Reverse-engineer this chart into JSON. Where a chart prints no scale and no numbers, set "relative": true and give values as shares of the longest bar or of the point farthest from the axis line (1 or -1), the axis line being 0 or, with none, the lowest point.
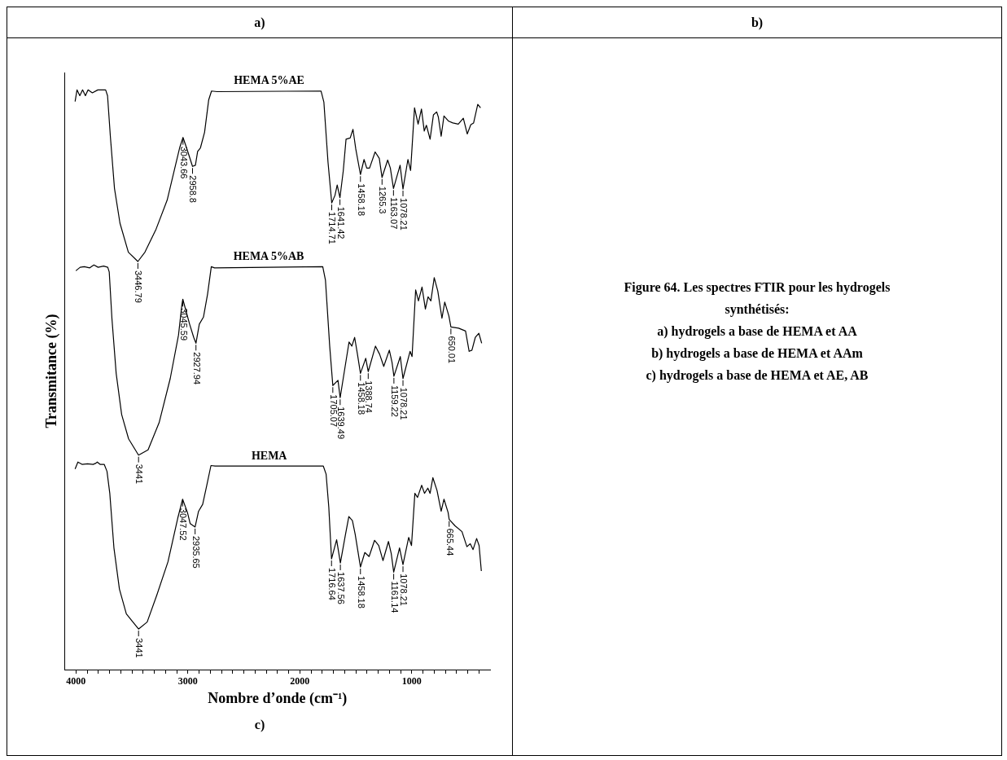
{
  "chart_data": {
    "type": "line",
    "title": "Figure 64. Les spectres FTIR pour les hydrogels synthétisés:",
    "xlabel": "Nombre d’onde (cm⁻¹)",
    "ylabel": "Transmitance (%)",
    "relative": true,
    "legend": false,
    "grid": false,
    "marker": "none",
    "line_style": "solid",
    "xlim": [
      4100,
      300
    ],
    "xticks": [
      4000,
      {
        "value": 3900,
        "label": null
      },
      {
        "value": 3800,
        "label": null
      },
      {
        "value": 3700,
        "label": null
      },
      {
        "value": 3600,
        "label": null
      },
      {
        "value": 3500,
        "label": null
      },
      {
        "value": 3400,
        "label": null
      },
      {
        "value": 3300,
        "label": null
      },
      {
        "value": 3200,
        "label": null
      },
      {
        "value": 3100,
        "label": null
      },
      3000,
      {
        "value": 2900,
        "label": null
      },
      {
        "value": 2800,
        "label": null
      },
      {
        "value": 2700,
        "label": null
      },
      {
        "value": 2600,
        "label": null
      },
      {
        "value": 2500,
        "label": null
      },
      {
        "value": 2400,
        "label": null
      },
      {
        "value": 2300,
        "label": null
      },
      {
        "value": 2200,
        "label": null
      },
      {
        "value": 2100,
        "label": null
      },
      2000,
      {
        "value": 1900,
        "label": null
      },
      {
        "value": 1800,
        "label": null
      },
      {
        "value": 1700,
        "label": null
      },
      {
        "value": 1600,
        "label": null
      },
      {
        "value": 1500,
        "label": null
      },
      {
        "value": 1400,
        "label": null
      },
      {
        "value": 1300,
        "label": null
      },
      {
        "value": 1200,
        "label": null
      },
      {
        "value": 1100,
        "label": null
      },
      1000,
      {
        "value": 900,
        "label": null
      },
      {
        "value": 800,
        "label": null
      },
      {
        "value": 700,
        "label": null
      },
      {
        "value": 600,
        "label": null
      },
      {
        "value": 500,
        "label": null
      },
      {
        "value": 400,
        "label": null
      }
    ],
    "series": [
      {
        "name": "HEMA 5%AE",
        "color": "#000000",
        "x": [
          4008,
          3991,
          3966,
          3941,
          3916,
          3892,
          3854,
          3805,
          3735,
          3718,
          3693,
          3656,
          3607,
          3532,
          3446.79,
          3384,
          3284,
          3185,
          3111,
          3074,
          3043.66,
          3012,
          2958.8,
          2933,
          2913,
          2888,
          2851,
          2814,
          2789,
          2739,
          1810,
          1785,
          1748,
          1714.71,
          1686,
          1666,
          1641.42,
          1612,
          1587,
          1550,
          1525,
          1500,
          1458.18,
          1426,
          1402,
          1377,
          1327,
          1290,
          1265.3,
          1215,
          1191,
          1163.07,
          1104,
          1078.21,
          1034,
          1010,
          975,
          943,
          913,
          888,
          869,
          836,
          806,
          777,
          762,
          737,
          712,
          670,
          633,
          584,
          539,
          504,
          472,
          447,
          410,
          385
        ],
        "values": [
          0.98,
          1.0,
          0.99,
          1.0,
          0.99,
          1.0,
          0.995,
          1.0,
          1.0,
          0.99,
          0.92,
          0.83,
          0.77,
          0.72,
          0.704,
          0.72,
          0.76,
          0.81,
          0.87,
          0.9,
          0.918,
          0.9,
          0.868,
          0.87,
          0.894,
          0.9,
          0.927,
          0.983,
          0.998,
          0.997,
          0.998,
          0.979,
          0.875,
          0.805,
          0.818,
          0.836,
          0.814,
          0.86,
          0.915,
          0.917,
          0.932,
          0.898,
          0.854,
          0.88,
          0.865,
          0.865,
          0.893,
          0.882,
          0.849,
          0.879,
          0.865,
          0.83,
          0.87,
          0.829,
          0.88,
          0.861,
          0.969,
          0.941,
          0.967,
          0.929,
          0.939,
          0.915,
          0.957,
          0.962,
          0.953,
          0.92,
          0.955,
          0.946,
          0.943,
          0.941,
          0.951,
          0.924,
          0.94,
          0.943,
          0.975,
          0.969
        ]
      },
      {
        "name": "HEMA 5%AB",
        "color": "#000000",
        "x": [
          4001,
          3963,
          3926,
          3877,
          3840,
          3802,
          3753,
          3716,
          3703,
          3679,
          3641,
          3592,
          3530,
          3441,
          3356,
          3257,
          3158,
          3084,
          3054,
          3045.59,
          2985,
          2948,
          2927.94,
          2898,
          2861,
          2824,
          2791,
          2762,
          1795,
          1771,
          1733,
          1705.07,
          1659,
          1639.49,
          1585,
          1560,
          1535,
          1510,
          1485,
          1458.18,
          1411,
          1388.74,
          1324,
          1287,
          1250,
          1200,
          1176,
          1159.22,
          1102,
          1078.21,
          1015,
          997,
          965,
          940,
          908,
          878,
          854,
          829,
          799,
          767,
          730,
          705,
          668,
          650.01,
          581,
          519,
          487,
          462,
          432,
          400,
          375
        ],
        "values": [
          0.688,
          0.694,
          0.695,
          0.693,
          0.698,
          0.694,
          0.696,
          0.694,
          0.686,
          0.606,
          0.511,
          0.44,
          0.398,
          0.37,
          0.379,
          0.426,
          0.502,
          0.577,
          0.629,
          0.639,
          0.596,
          0.573,
          0.563,
          0.596,
          0.608,
          0.648,
          0.695,
          0.693,
          0.695,
          0.672,
          0.558,
          0.49,
          0.499,
          0.469,
          0.535,
          0.565,
          0.558,
          0.573,
          0.544,
          0.511,
          0.537,
          0.514,
          0.558,
          0.544,
          0.523,
          0.551,
          0.53,
          0.506,
          0.54,
          0.502,
          0.549,
          0.54,
          0.655,
          0.636,
          0.66,
          0.622,
          0.643,
          0.636,
          0.676,
          0.653,
          0.606,
          0.634,
          0.61,
          0.591,
          0.589,
          0.584,
          0.549,
          0.551,
          0.573,
          0.58,
          0.563
        ]
      },
      {
        "name": "HEMA",
        "color": "#000000",
        "x": [
          4008,
          3983,
          3946,
          3897,
          3847,
          3822,
          3810,
          3785,
          3748,
          3723,
          3698,
          3661,
          3612,
          3550,
          3441,
          3364,
          3277,
          3178,
          3091,
          3047.52,
          3004,
          2980,
          2935.65,
          2905,
          2868,
          2831,
          2794,
          2757,
          1790,
          1765,
          1741,
          1716.64,
          1671,
          1637.56,
          1592,
          1562,
          1530,
          1505,
          1458.18,
          1419,
          1381,
          1332,
          1295,
          1257,
          1208,
          1183,
          1161.14,
          1109,
          1078.21,
          1027,
          1002,
          972,
          948,
          911,
          886,
          856,
          836,
          811,
          774,
          737,
          712,
          675,
          665.44,
          613,
          551,
          507,
          477,
          452,
          420,
          398,
          378
        ],
        "values": [
          0.346,
          0.358,
          0.354,
          0.355,
          0.354,
          0.356,
          0.358,
          0.354,
          0.354,
          0.342,
          0.304,
          0.21,
          0.139,
          0.096,
          0.07,
          0.082,
          0.129,
          0.186,
          0.261,
          0.294,
          0.271,
          0.252,
          0.246,
          0.273,
          0.285,
          0.318,
          0.352,
          0.351,
          0.351,
          0.337,
          0.28,
          0.191,
          0.224,
          0.184,
          0.233,
          0.264,
          0.257,
          0.233,
          0.177,
          0.202,
          0.195,
          0.223,
          0.214,
          0.188,
          0.221,
          0.2,
          0.168,
          0.21,
          0.181,
          0.228,
          0.214,
          0.304,
          0.297,
          0.318,
          0.304,
          0.313,
          0.304,
          0.331,
          0.309,
          0.273,
          0.294,
          0.271,
          0.259,
          0.248,
          0.238,
          0.212,
          0.217,
          0.207,
          0.226,
          0.214,
          0.17
        ]
      }
    ],
    "annotations": [
      "a)",
      "b)",
      {
        "text": "3446.79",
        "x": 3446.79,
        "y": 0.704
      },
      {
        "text": "3043.66",
        "x": 3043.66,
        "y": 0.918
      },
      {
        "text": "2958.8",
        "x": 2958.8,
        "y": 0.868
      },
      {
        "text": "1714.71",
        "x": 1714.71,
        "y": 0.805
      },
      {
        "text": "1641.42",
        "x": 1641.42,
        "y": 0.814
      },
      {
        "text": "1458.18",
        "x": 1458.18,
        "y": 0.854
      },
      {
        "text": "1265.3",
        "x": 1265.3,
        "y": 0.849
      },
      {
        "text": "1163.07",
        "x": 1163.07,
        "y": 0.83
      },
      {
        "text": "1078.21",
        "x": 1078.21,
        "y": 0.829
      },
      {
        "text": "3441",
        "x": 3441,
        "y": 0.37
      },
      {
        "text": "3045.59",
        "x": 3045.59,
        "y": 0.639
      },
      {
        "text": "2927.94",
        "x": 2927.94,
        "y": 0.563
      },
      {
        "text": "1705.07",
        "x": 1705.07,
        "y": 0.49
      },
      {
        "text": "1639.49",
        "x": 1639.49,
        "y": 0.469
      },
      {
        "text": "1458.18",
        "x": 1458.18,
        "y": 0.511
      },
      {
        "text": "1388.74",
        "x": 1388.74,
        "y": 0.514
      },
      {
        "text": "1159.22",
        "x": 1159.22,
        "y": 0.506
      },
      {
        "text": "1078.21",
        "x": 1078.21,
        "y": 0.502
      },
      {
        "text": "650.01",
        "x": 650.01,
        "y": 0.591
      },
      {
        "text": "3441",
        "x": 3441,
        "y": 0.07
      },
      {
        "text": "3047.52",
        "x": 3047.52,
        "y": 0.294
      },
      {
        "text": "2935.65",
        "x": 2935.65,
        "y": 0.246
      },
      {
        "text": "1716.64",
        "x": 1716.64,
        "y": 0.191
      },
      {
        "text": "1637.56",
        "x": 1637.56,
        "y": 0.184
      },
      {
        "text": "1458.18",
        "x": 1458.18,
        "y": 0.177
      },
      {
        "text": "1161.14",
        "x": 1161.14,
        "y": 0.168
      },
      {
        "text": "1078.21",
        "x": 1078.21,
        "y": 0.181
      },
      {
        "text": "665.44",
        "x": 665.44,
        "y": 0.259
      },
      "a) hydrogels a base de HEMA et AA",
      "b) hydrogels a base de HEMA et AAm",
      "c) hydrogels a base de HEMA et AE, AB",
      "c)"
    ]
  }
}
